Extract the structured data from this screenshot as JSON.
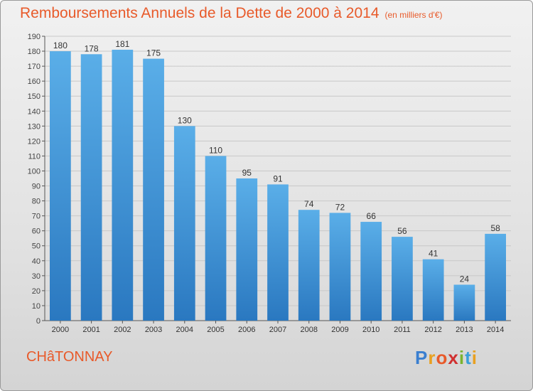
{
  "title": "Remboursements Annuels de la Dette de 2000 à 2014",
  "subtitle": "(en milliers d'€)",
  "place": "CHâTONNAY",
  "logo": {
    "text": "Proxiti",
    "letters": [
      {
        "ch": "P",
        "color": "#3a7fd0"
      },
      {
        "ch": "r",
        "color": "#e8a020"
      },
      {
        "ch": "o",
        "color": "#e85a2a"
      },
      {
        "ch": "x",
        "color": "#d03030"
      },
      {
        "ch": "i",
        "color": "#7ab32e"
      },
      {
        "ch": "t",
        "color": "#3a9fd8"
      },
      {
        "ch": "i",
        "color": "#e8a020"
      }
    ]
  },
  "colors": {
    "title": "#e85a2a",
    "bar_top": "#5aaee8",
    "bar_bottom": "#2a78c0",
    "grid": "#c8c8c8"
  },
  "chart_data": {
    "type": "bar",
    "categories": [
      "2000",
      "2001",
      "2002",
      "2003",
      "2004",
      "2005",
      "2006",
      "2007",
      "2008",
      "2009",
      "2010",
      "2011",
      "2012",
      "2013",
      "2014"
    ],
    "values": [
      180,
      178,
      181,
      175,
      130,
      110,
      95,
      91,
      74,
      72,
      66,
      56,
      41,
      24,
      58
    ],
    "ylim": [
      0,
      190
    ],
    "yticks": [
      0,
      10,
      20,
      30,
      40,
      50,
      60,
      70,
      80,
      90,
      100,
      110,
      120,
      130,
      140,
      150,
      160,
      170,
      180,
      190
    ],
    "grid": true,
    "xlabel": "",
    "ylabel": ""
  }
}
